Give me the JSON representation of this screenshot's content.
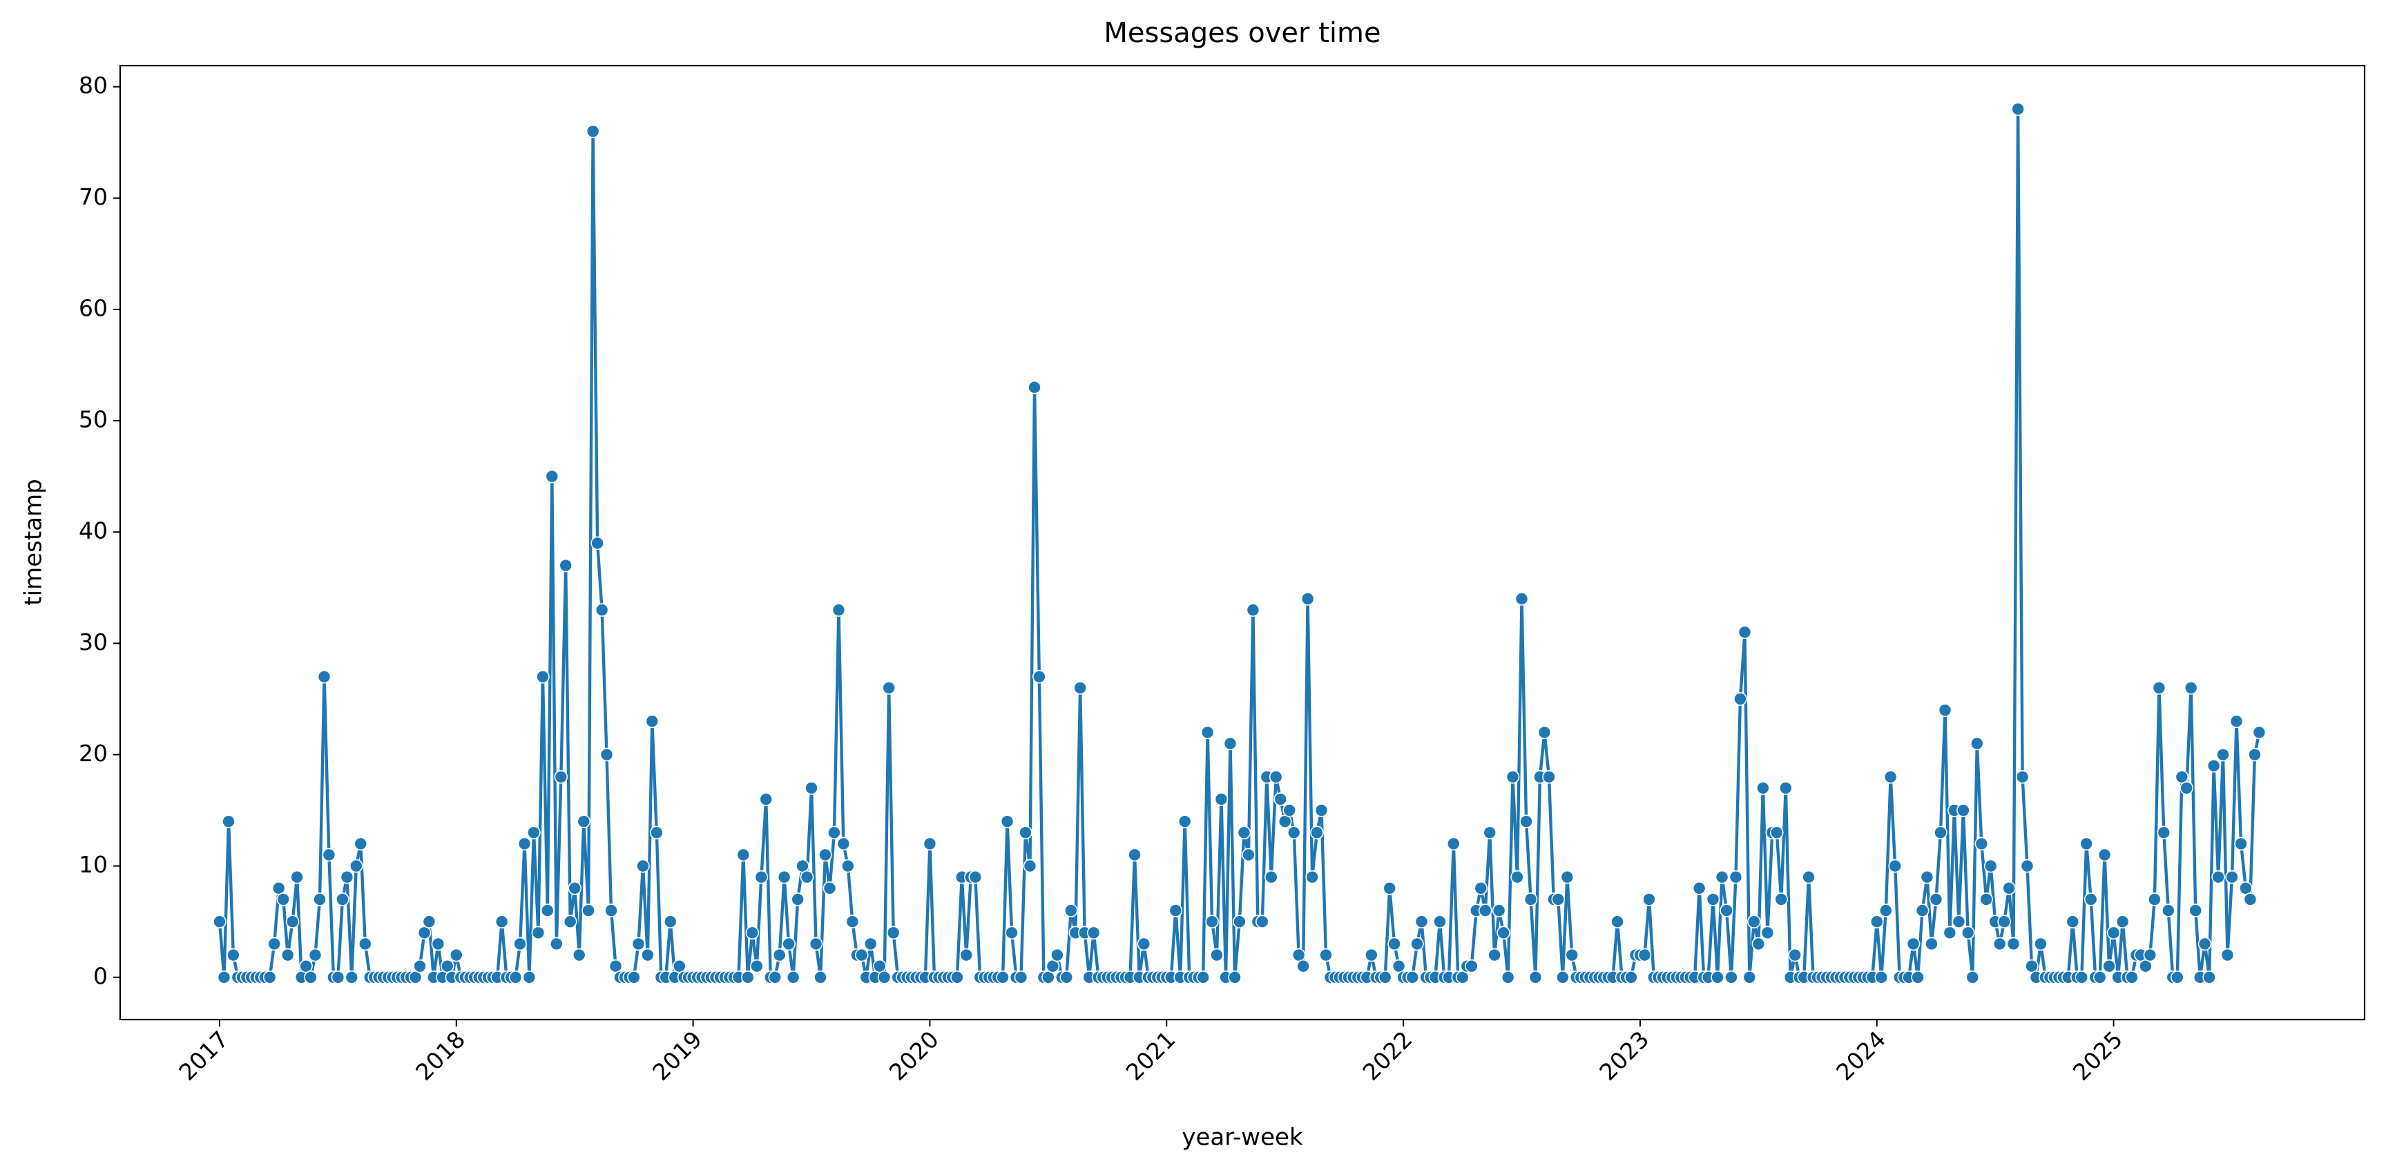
{
  "chart_data": {
    "type": "line",
    "title": "Messages over time",
    "xlabel": "year-week",
    "ylabel": "timestamp",
    "color": "#1f77b4",
    "xlim": [
      2016.58,
      2026.06
    ],
    "xticks": [
      2017,
      2018,
      2019,
      2020,
      2021,
      2022,
      2023,
      2024,
      2025
    ],
    "ylim": [
      -3.8,
      81.9
    ],
    "yticks": [
      0,
      10,
      20,
      30,
      40,
      50,
      60,
      70,
      80
    ],
    "x": [
      2017,
      2017.019,
      2017.038,
      2017.058,
      2017.077,
      2017.096,
      2017.115,
      2017.135,
      2017.154,
      2017.173,
      2017.192,
      2017.212,
      2017.231,
      2017.25,
      2017.269,
      2017.288,
      2017.308,
      2017.327,
      2017.346,
      2017.365,
      2017.385,
      2017.404,
      2017.423,
      2017.442,
      2017.462,
      2017.481,
      2017.5,
      2017.519,
      2017.538,
      2017.558,
      2017.577,
      2017.596,
      2017.615,
      2017.635,
      2017.654,
      2017.673,
      2017.692,
      2017.712,
      2017.731,
      2017.75,
      2017.769,
      2017.788,
      2017.808,
      2017.827,
      2017.846,
      2017.865,
      2017.885,
      2017.904,
      2017.923,
      2017.942,
      2017.962,
      2017.981,
      2018,
      2018.019,
      2018.038,
      2018.058,
      2018.077,
      2018.096,
      2018.115,
      2018.135,
      2018.154,
      2018.173,
      2018.192,
      2018.212,
      2018.231,
      2018.25,
      2018.269,
      2018.288,
      2018.308,
      2018.327,
      2018.346,
      2018.365,
      2018.385,
      2018.404,
      2018.423,
      2018.442,
      2018.462,
      2018.481,
      2018.5,
      2018.519,
      2018.538,
      2018.558,
      2018.577,
      2018.596,
      2018.615,
      2018.635,
      2018.654,
      2018.673,
      2018.692,
      2018.712,
      2018.731,
      2018.75,
      2018.769,
      2018.788,
      2018.808,
      2018.827,
      2018.846,
      2018.865,
      2018.885,
      2018.904,
      2018.923,
      2018.942,
      2018.962,
      2018.981,
      2019,
      2019.019,
      2019.038,
      2019.058,
      2019.077,
      2019.096,
      2019.115,
      2019.135,
      2019.154,
      2019.173,
      2019.192,
      2019.212,
      2019.231,
      2019.25,
      2019.269,
      2019.288,
      2019.308,
      2019.327,
      2019.346,
      2019.365,
      2019.385,
      2019.404,
      2019.423,
      2019.442,
      2019.462,
      2019.481,
      2019.5,
      2019.519,
      2019.538,
      2019.558,
      2019.577,
      2019.596,
      2019.615,
      2019.635,
      2019.654,
      2019.673,
      2019.692,
      2019.712,
      2019.731,
      2019.75,
      2019.769,
      2019.788,
      2019.808,
      2019.827,
      2019.846,
      2019.865,
      2019.885,
      2019.904,
      2019.923,
      2019.942,
      2019.962,
      2019.981,
      2020,
      2020.019,
      2020.038,
      2020.058,
      2020.077,
      2020.096,
      2020.115,
      2020.135,
      2020.154,
      2020.173,
      2020.192,
      2020.212,
      2020.231,
      2020.25,
      2020.269,
      2020.288,
      2020.308,
      2020.327,
      2020.346,
      2020.365,
      2020.385,
      2020.404,
      2020.423,
      2020.442,
      2020.462,
      2020.481,
      2020.5,
      2020.519,
      2020.538,
      2020.558,
      2020.577,
      2020.596,
      2020.615,
      2020.635,
      2020.654,
      2020.673,
      2020.692,
      2020.712,
      2020.731,
      2020.75,
      2020.769,
      2020.788,
      2020.808,
      2020.827,
      2020.846,
      2020.865,
      2020.885,
      2020.904,
      2020.923,
      2020.942,
      2020.962,
      2020.981,
      2021,
      2021.019,
      2021.038,
      2021.058,
      2021.077,
      2021.096,
      2021.115,
      2021.135,
      2021.154,
      2021.173,
      2021.192,
      2021.212,
      2021.231,
      2021.25,
      2021.269,
      2021.288,
      2021.308,
      2021.327,
      2021.346,
      2021.365,
      2021.385,
      2021.404,
      2021.423,
      2021.442,
      2021.462,
      2021.481,
      2021.5,
      2021.519,
      2021.538,
      2021.558,
      2021.577,
      2021.596,
      2021.615,
      2021.635,
      2021.654,
      2021.673,
      2021.692,
      2021.712,
      2021.731,
      2021.75,
      2021.769,
      2021.788,
      2021.808,
      2021.827,
      2021.846,
      2021.865,
      2021.885,
      2021.904,
      2021.923,
      2021.942,
      2021.962,
      2021.981,
      2022,
      2022.019,
      2022.038,
      2022.058,
      2022.077,
      2022.096,
      2022.115,
      2022.135,
      2022.154,
      2022.173,
      2022.192,
      2022.212,
      2022.231,
      2022.25,
      2022.269,
      2022.288,
      2022.308,
      2022.327,
      2022.346,
      2022.365,
      2022.385,
      2022.404,
      2022.423,
      2022.442,
      2022.462,
      2022.481,
      2022.5,
      2022.519,
      2022.538,
      2022.558,
      2022.577,
      2022.596,
      2022.615,
      2022.635,
      2022.654,
      2022.673,
      2022.692,
      2022.712,
      2022.731,
      2022.75,
      2022.769,
      2022.788,
      2022.808,
      2022.827,
      2022.846,
      2022.865,
      2022.885,
      2022.904,
      2022.923,
      2022.942,
      2022.962,
      2022.981,
      2023,
      2023.019,
      2023.038,
      2023.058,
      2023.077,
      2023.096,
      2023.115,
      2023.135,
      2023.154,
      2023.173,
      2023.192,
      2023.212,
      2023.231,
      2023.25,
      2023.269,
      2023.288,
      2023.308,
      2023.327,
      2023.346,
      2023.365,
      2023.385,
      2023.404,
      2023.423,
      2023.442,
      2023.462,
      2023.481,
      2023.5,
      2023.519,
      2023.538,
      2023.558,
      2023.577,
      2023.596,
      2023.615,
      2023.635,
      2023.654,
      2023.673,
      2023.692,
      2023.712,
      2023.731,
      2023.75,
      2023.769,
      2023.788,
      2023.808,
      2023.827,
      2023.846,
      2023.865,
      2023.885,
      2023.904,
      2023.923,
      2023.942,
      2023.962,
      2023.981,
      2024,
      2024.019,
      2024.038,
      2024.058,
      2024.077,
      2024.096,
      2024.115,
      2024.135,
      2024.154,
      2024.173,
      2024.192,
      2024.212,
      2024.231,
      2024.25,
      2024.269,
      2024.288,
      2024.308,
      2024.327,
      2024.346,
      2024.365,
      2024.385,
      2024.404,
      2024.423,
      2024.442,
      2024.462,
      2024.481,
      2024.5,
      2024.519,
      2024.538,
      2024.558,
      2024.577,
      2024.596,
      2024.615,
      2024.635,
      2024.654,
      2024.673,
      2024.692,
      2024.712,
      2024.731,
      2024.75,
      2024.769,
      2024.788,
      2024.808,
      2024.827,
      2024.846,
      2024.865,
      2024.885,
      2024.904,
      2024.923,
      2024.942,
      2024.962,
      2024.981,
      2025,
      2025.019,
      2025.038,
      2025.058,
      2025.077,
      2025.096,
      2025.115,
      2025.135,
      2025.154,
      2025.173,
      2025.192,
      2025.212,
      2025.231,
      2025.25,
      2025.269,
      2025.288,
      2025.308,
      2025.327,
      2025.346,
      2025.365,
      2025.385,
      2025.404,
      2025.423,
      2025.442,
      2025.462,
      2025.481,
      2025.5,
      2025.519,
      2025.538,
      2025.558,
      2025.577,
      2025.596,
      2025.615
    ],
    "values": [
      5,
      0,
      14,
      2,
      0,
      0,
      0,
      0,
      0,
      0,
      0,
      0,
      3,
      8,
      7,
      2,
      5,
      9,
      0,
      1,
      0,
      2,
      7,
      27,
      11,
      0,
      0,
      7,
      9,
      0,
      10,
      12,
      3,
      0,
      0,
      0,
      0,
      0,
      0,
      0,
      0,
      0,
      0,
      0,
      1,
      4,
      5,
      0,
      3,
      0,
      1,
      0,
      2,
      0,
      0,
      0,
      0,
      0,
      0,
      0,
      0,
      0,
      5,
      0,
      0,
      0,
      3,
      12,
      0,
      13,
      4,
      27,
      6,
      45,
      3,
      18,
      37,
      5,
      8,
      2,
      14,
      6,
      76,
      39,
      33,
      20,
      6,
      1,
      0,
      0,
      0,
      0,
      3,
      10,
      2,
      23,
      13,
      0,
      0,
      5,
      0,
      1,
      0,
      0,
      0,
      0,
      0,
      0,
      0,
      0,
      0,
      0,
      0,
      0,
      0,
      11,
      0,
      4,
      1,
      9,
      16,
      0,
      0,
      2,
      9,
      3,
      0,
      7,
      10,
      9,
      17,
      3,
      0,
      11,
      8,
      13,
      33,
      12,
      10,
      5,
      2,
      2,
      0,
      3,
      0,
      1,
      0,
      26,
      4,
      0,
      0,
      0,
      0,
      0,
      0,
      0,
      12,
      0,
      0,
      0,
      0,
      0,
      0,
      9,
      2,
      9,
      9,
      0,
      0,
      0,
      0,
      0,
      0,
      14,
      4,
      0,
      0,
      13,
      10,
      53,
      27,
      0,
      0,
      1,
      2,
      0,
      0,
      6,
      4,
      26,
      4,
      0,
      4,
      0,
      0,
      0,
      0,
      0,
      0,
      0,
      0,
      11,
      0,
      3,
      0,
      0,
      0,
      0,
      0,
      0,
      6,
      0,
      14,
      0,
      0,
      0,
      0,
      22,
      5,
      2,
      16,
      0,
      21,
      0,
      5,
      13,
      11,
      33,
      5,
      5,
      18,
      9,
      18,
      16,
      14,
      15,
      13,
      2,
      1,
      34,
      9,
      13,
      15,
      2,
      0,
      0,
      0,
      0,
      0,
      0,
      0,
      0,
      0,
      2,
      0,
      0,
      0,
      8,
      3,
      1,
      0,
      0,
      0,
      3,
      5,
      0,
      0,
      0,
      5,
      0,
      0,
      12,
      0,
      0,
      1,
      1,
      6,
      8,
      6,
      13,
      2,
      6,
      4,
      0,
      18,
      9,
      34,
      14,
      7,
      0,
      18,
      22,
      18,
      7,
      7,
      0,
      9,
      2,
      0,
      0,
      0,
      0,
      0,
      0,
      0,
      0,
      0,
      5,
      0,
      0,
      0,
      2,
      2,
      2,
      7,
      0,
      0,
      0,
      0,
      0,
      0,
      0,
      0,
      0,
      0,
      8,
      0,
      0,
      7,
      0,
      9,
      6,
      0,
      9,
      25,
      31,
      0,
      5,
      3,
      17,
      4,
      13,
      13,
      7,
      17,
      0,
      2,
      0,
      0,
      9,
      0,
      0,
      0,
      0,
      0,
      0,
      0,
      0,
      0,
      0,
      0,
      0,
      0,
      0,
      5,
      0,
      6,
      18,
      10,
      0,
      0,
      0,
      3,
      0,
      6,
      9,
      3,
      7,
      13,
      24,
      4,
      15,
      5,
      15,
      4,
      0,
      21,
      12,
      7,
      10,
      5,
      3,
      5,
      8,
      3,
      78,
      18,
      10,
      1,
      0,
      3,
      0,
      0,
      0,
      0,
      0,
      0,
      5,
      0,
      0,
      12,
      7,
      0,
      0,
      11,
      1,
      4,
      0,
      5,
      0,
      0,
      2,
      2,
      1,
      2,
      7,
      26,
      13,
      6,
      0,
      0,
      18,
      17,
      26,
      6,
      0,
      3,
      0,
      19,
      9,
      20,
      2,
      9,
      23,
      12,
      8,
      7,
      20,
      22
    ]
  }
}
